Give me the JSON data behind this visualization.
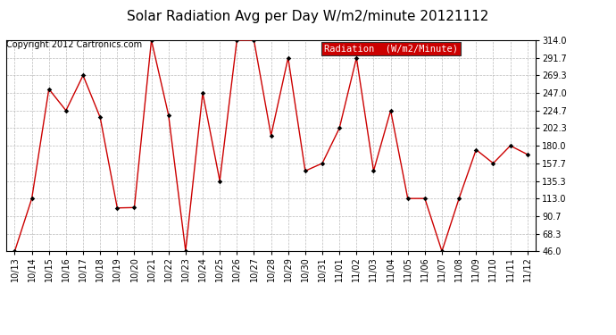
{
  "title": "Solar Radiation Avg per Day W/m2/minute 20121112",
  "copyright": "Copyright 2012 Cartronics.com",
  "legend_label": "Radiation  (W/m2/Minute)",
  "dates": [
    "10/13",
    "10/14",
    "10/15",
    "10/16",
    "10/17",
    "10/18",
    "10/19",
    "10/20",
    "10/21",
    "10/22",
    "10/23",
    "10/24",
    "10/25",
    "10/26",
    "10/27",
    "10/28",
    "10/29",
    "10/30",
    "10/31",
    "11/01",
    "11/02",
    "11/03",
    "11/04",
    "11/05",
    "11/06",
    "11/07",
    "11/08",
    "11/09",
    "11/10",
    "11/11",
    "11/12"
  ],
  "values": [
    46.0,
    113.0,
    252.0,
    224.7,
    269.3,
    216.0,
    101.0,
    101.5,
    314.0,
    219.0,
    46.5,
    247.0,
    135.3,
    314.0,
    314.0,
    193.0,
    291.7,
    148.0,
    157.7,
    202.3,
    291.7,
    148.0,
    224.7,
    113.0,
    113.0,
    46.0,
    113.0,
    175.0,
    157.7,
    180.0,
    169.0
  ],
  "line_color": "#cc0000",
  "marker_color": "#000000",
  "background_color": "#ffffff",
  "plot_bg_color": "#ffffff",
  "grid_color": "#bbbbbb",
  "legend_bg": "#cc0000",
  "legend_text_color": "#ffffff",
  "ylim_min": 46.0,
  "ylim_max": 314.0,
  "yticks": [
    46.0,
    68.3,
    90.7,
    113.0,
    135.3,
    157.7,
    180.0,
    202.3,
    224.7,
    247.0,
    269.3,
    291.7,
    314.0
  ],
  "title_fontsize": 11,
  "copyright_fontsize": 7,
  "tick_fontsize": 7,
  "legend_fontsize": 7.5
}
